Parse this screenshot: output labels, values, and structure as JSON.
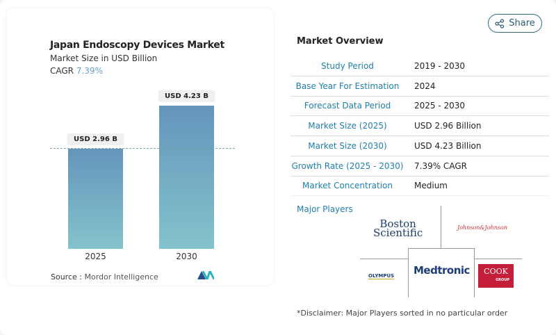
{
  "share": {
    "label": "Share",
    "icon": "share-icon"
  },
  "chart_data": {
    "type": "bar",
    "title": "Japan Endoscopy Devices Market",
    "subtitle": "Market Size in USD Billion",
    "cagr_label": "CAGR",
    "cagr_value": "7.39%",
    "categories": [
      "2025",
      "2030"
    ],
    "values": [
      2.96,
      4.23
    ],
    "data_labels": [
      "USD 2.96 B",
      "USD 4.23 B"
    ],
    "colors": {
      "bar_top": "#6495bb",
      "bar_bottom": "#83c3cc"
    },
    "reference_line": "dashed at 2025 value"
  },
  "source": {
    "label": "Source :",
    "value": "Mordor Intelligence"
  },
  "overview": {
    "title": "Market Overview",
    "rows": [
      {
        "k": "Study Period",
        "v": "2019 - 2030"
      },
      {
        "k": "Base Year For Estimation",
        "v": "2024"
      },
      {
        "k": "Forecast Data Period",
        "v": "2025 - 2030"
      },
      {
        "k": "Market Size (2025)",
        "v": "USD 2.96 Billion"
      },
      {
        "k": "Market Size (2030)",
        "v": "USD 4.23 Billion"
      },
      {
        "k": "Growth Rate (2025 - 2030)",
        "v": "7.39% CAGR"
      },
      {
        "k": "Market Concentration",
        "v": "Medium"
      }
    ]
  },
  "players": {
    "title": "Major Players",
    "logos": [
      "Boston Scientific",
      "Johnson & Johnson",
      "Olympus",
      "Medtronic",
      "COOK GROUP"
    ],
    "boston1": "Boston",
    "boston2": "Scientific",
    "jnj": "Johnson&Johnson",
    "olympus": "OLYMPUS",
    "medtronic": "Medtronic",
    "cook": "COOK",
    "cook_group": "GROUP"
  },
  "disclaimer": "*Disclaimer: Major Players sorted in no particular order"
}
